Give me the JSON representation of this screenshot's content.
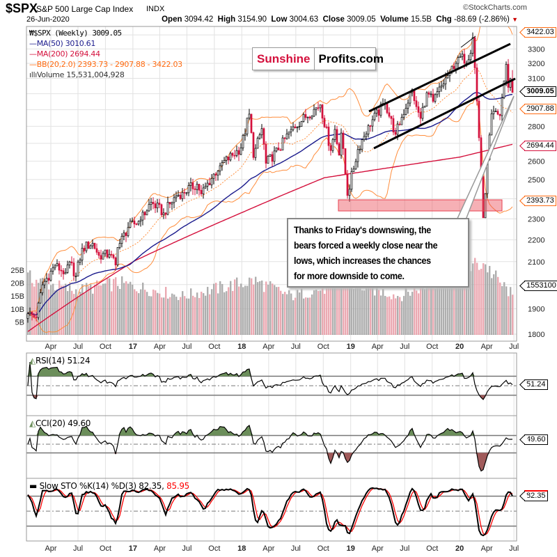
{
  "header": {
    "symbol": "$SPX",
    "name": "S&P 500 Large Cap Index",
    "exchange": "INDX",
    "date": "26-Jun-2020",
    "copyright": "©StockCharts.com",
    "open_label": "Open",
    "open": "3094.42",
    "high_label": "High",
    "high": "3154.90",
    "low_label": "Low",
    "low": "3004.63",
    "close_label": "Close",
    "close": "3009.05",
    "volume_label": "Volume",
    "volume": "15.5B",
    "chg_label": "Chg",
    "chg": "-88.69 (-2.86%)"
  },
  "legend": {
    "price": "$SPX (Weekly) 3009.05",
    "ma50": "MA(50) 3010.61",
    "ma200": "MA(200) 2694.44",
    "bb": "BB(20,2.0) 2393.73 - 2907.88 - 3422.03",
    "volume": "Volume 15,531,004,928"
  },
  "colors": {
    "up": "#000000",
    "down": "#d4103c",
    "ma50": "#1a1a8c",
    "ma200": "#d4103c",
    "bb": "#ff8c3a",
    "volume_up": "#a0a0a0",
    "volume_down": "#e89aa4",
    "overbought_fill": "#6b8e5a",
    "oversold_fill": "#a05a5a",
    "sto_d": "#ff0000"
  },
  "logo": {
    "part1": "Sunshine",
    "part2": "Profits.com"
  },
  "annotation": {
    "lines": [
      "Thanks to Friday's downswing, the",
      "bears forced a weekly close near the",
      "lows, which increases the chances",
      "for more downside to come."
    ]
  },
  "chart_data": [
    {
      "type": "candlestick",
      "title": "$SPX S&P 500 Large Cap Index INDX",
      "period": "weekly",
      "y_scale": "log",
      "ylim": [
        1760,
        3450
      ],
      "grid": true,
      "legend_position": "top-left",
      "y_ticks": [
        "3300",
        "3200",
        "3100",
        "2800",
        "2600",
        "2500",
        "2300",
        "2200",
        "2100",
        "1900",
        "1800"
      ],
      "price_tags": {
        "bb_upper": "3422.03",
        "close": "3009.05",
        "bb_mid": "2907.88",
        "ma200": "2694.44",
        "bb_lower": "2393.73",
        "volume": "1553100"
      },
      "x_ticks": [
        [
          "2016-04",
          "Apr"
        ],
        [
          "2016-07",
          "Jul"
        ],
        [
          "2016-10",
          "Oct"
        ],
        [
          "2017-01",
          "17"
        ],
        [
          "2017-04",
          "Apr"
        ],
        [
          "2017-07",
          "Jul"
        ],
        [
          "2017-10",
          "Oct"
        ],
        [
          "2018-01",
          "18"
        ],
        [
          "2018-04",
          "Apr"
        ],
        [
          "2018-07",
          "Jul"
        ],
        [
          "2018-10",
          "Oct"
        ],
        [
          "2019-01",
          "19"
        ],
        [
          "2019-04",
          "Apr"
        ],
        [
          "2019-07",
          "Jul"
        ],
        [
          "2019-10",
          "Oct"
        ],
        [
          "2020-01",
          "20"
        ],
        [
          "2020-04",
          "Apr"
        ],
        [
          "2020-07",
          "Jul"
        ]
      ],
      "weekly_close_keypoints": [
        [
          "2016-01-15",
          1880
        ],
        [
          "2016-02-12",
          1865
        ],
        [
          "2016-03-04",
          1999
        ],
        [
          "2016-04-15",
          2081
        ],
        [
          "2016-05-20",
          2052
        ],
        [
          "2016-06-03",
          2099
        ],
        [
          "2016-06-24",
          2037
        ],
        [
          "2016-07-15",
          2161
        ],
        [
          "2016-08-19",
          2184
        ],
        [
          "2016-09-09",
          2128
        ],
        [
          "2016-10-14",
          2133
        ],
        [
          "2016-11-04",
          2085
        ],
        [
          "2016-11-11",
          2164
        ],
        [
          "2016-12-16",
          2258
        ],
        [
          "2017-01-27",
          2294
        ],
        [
          "2017-03-03",
          2383
        ],
        [
          "2017-04-14",
          2329
        ],
        [
          "2017-05-26",
          2415
        ],
        [
          "2017-06-16",
          2433
        ],
        [
          "2017-08-04",
          2476
        ],
        [
          "2017-08-18",
          2425
        ],
        [
          "2017-10-20",
          2575
        ],
        [
          "2017-12-29",
          2674
        ],
        [
          "2018-01-26",
          2873
        ],
        [
          "2018-02-09",
          2620
        ],
        [
          "2018-03-09",
          2786
        ],
        [
          "2018-03-23",
          2588
        ],
        [
          "2018-05-04",
          2663
        ],
        [
          "2018-06-15",
          2780
        ],
        [
          "2018-08-31",
          2902
        ],
        [
          "2018-09-21",
          2930
        ],
        [
          "2018-10-26",
          2659
        ],
        [
          "2018-11-09",
          2781
        ],
        [
          "2018-11-23",
          2633
        ],
        [
          "2018-11-30",
          2760
        ],
        [
          "2018-12-21",
          2417
        ],
        [
          "2019-01-25",
          2665
        ],
        [
          "2019-03-01",
          2803
        ],
        [
          "2019-04-26",
          2940
        ],
        [
          "2019-05-31",
          2752
        ],
        [
          "2019-07-26",
          3026
        ],
        [
          "2019-08-09",
          2919
        ],
        [
          "2019-08-23",
          2847
        ],
        [
          "2019-09-13",
          3007
        ],
        [
          "2019-10-04",
          2952
        ],
        [
          "2019-11-29",
          3141
        ],
        [
          "2019-12-27",
          3240
        ],
        [
          "2020-01-31",
          3225
        ],
        [
          "2020-02-14",
          3380
        ],
        [
          "2020-02-28",
          2954
        ],
        [
          "2020-03-20",
          2305
        ],
        [
          "2020-04-17",
          2875
        ],
        [
          "2020-05-15",
          2864
        ],
        [
          "2020-06-05",
          3194
        ],
        [
          "2020-06-12",
          3041
        ],
        [
          "2020-06-19",
          3097
        ],
        [
          "2020-06-26",
          3009.05
        ]
      ],
      "last_bar": {
        "date": "2020-06-26",
        "open": 3094.42,
        "high": 3154.9,
        "low": 3004.63,
        "close": 3009.05
      },
      "ma200_keypoints": [
        [
          "2016-01-15",
          1810
        ],
        [
          "2017-01-06",
          2103
        ],
        [
          "2018-01-05",
          2333
        ],
        [
          "2018-10-05",
          2510
        ],
        [
          "2020-01-03",
          2623
        ],
        [
          "2020-06-26",
          2694.44
        ]
      ],
      "volume_axis": {
        "ticks": [
          "25B",
          "20B",
          "15B",
          "10B",
          "5B"
        ]
      },
      "volume_keypoints_billions": [
        [
          "2016-01-15",
          22
        ],
        [
          "2016-06-17",
          17
        ],
        [
          "2016-11-11",
          20
        ],
        [
          "2017-06-16",
          15
        ],
        [
          "2018-02-09",
          21
        ],
        [
          "2018-06-15",
          15
        ],
        [
          "2018-12-21",
          20
        ],
        [
          "2019-06-14",
          15
        ],
        [
          "2020-03-20",
          28
        ],
        [
          "2020-05-15",
          20
        ],
        [
          "2020-06-26",
          15.53
        ]
      ]
    },
    {
      "type": "line",
      "title": "RSI(14) 51.24",
      "last": "51.24",
      "levels": [
        70,
        30
      ],
      "y_ticks": [
        "90",
        "70",
        "30",
        "10"
      ],
      "ylim": [
        0,
        100
      ]
    },
    {
      "type": "line",
      "title": "CCI(20) 49.60",
      "last": "49.60",
      "levels": [
        100,
        -100
      ],
      "y_ticks": [
        "200",
        "-200"
      ],
      "ylim": [
        -336,
        320
      ]
    },
    {
      "type": "line",
      "title_k": "Slow STO %K(14) %D(3) 82.35,",
      "title_d": "85.95",
      "last_k": "82.35",
      "last_d": "85.95",
      "levels": [
        80,
        20
      ],
      "y_ticks": [
        "50",
        "20"
      ],
      "ylim": [
        0,
        100
      ]
    }
  ]
}
